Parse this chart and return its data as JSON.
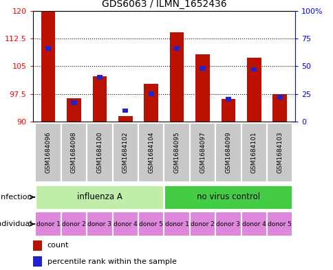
{
  "title": "GDS6063 / ILMN_1652436",
  "samples": [
    "GSM1684096",
    "GSM1684098",
    "GSM1684100",
    "GSM1684102",
    "GSM1684104",
    "GSM1684095",
    "GSM1684097",
    "GSM1684099",
    "GSM1684101",
    "GSM1684103"
  ],
  "count_values": [
    120,
    96.3,
    102.2,
    91.5,
    100.3,
    114.2,
    108.2,
    96.2,
    107.2,
    97.5
  ],
  "percentile_values": [
    66,
    17,
    40,
    10,
    25,
    66,
    48,
    20,
    47,
    22
  ],
  "ymin": 90,
  "ymax": 120,
  "yticks": [
    90,
    97.5,
    105,
    112.5,
    120
  ],
  "ytick_labels": [
    "90",
    "97.5",
    "105",
    "112.5",
    "120"
  ],
  "right_yticks_pct": [
    0,
    25,
    50,
    75,
    100
  ],
  "right_ytick_labels": [
    "0",
    "25",
    "50",
    "75",
    "100%"
  ],
  "infection_groups": [
    {
      "label": "influenza A",
      "start": 0,
      "end": 5,
      "color": "#c0eeaa"
    },
    {
      "label": "no virus control",
      "start": 5,
      "end": 10,
      "color": "#44cc44"
    }
  ],
  "individual_labels": [
    "donor 1",
    "donor 2",
    "donor 3",
    "donor 4",
    "donor 5",
    "donor 1",
    "donor 2",
    "donor 3",
    "donor 4",
    "donor 5"
  ],
  "individual_color": "#dd88dd",
  "bar_color": "#bb1100",
  "percentile_color": "#2222cc",
  "sample_bg_color": "#c8c8c8",
  "infection_label": "infection",
  "individual_label": "individual",
  "n_samples": 10,
  "bar_width": 0.55,
  "pct_bar_width": 0.22
}
